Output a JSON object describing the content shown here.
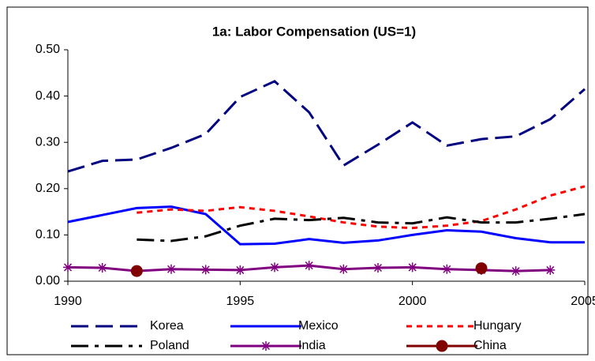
{
  "chart_data": {
    "type": "line",
    "title": "1a: Labor Compensation (US=1)",
    "x": [
      1990,
      1991,
      1992,
      1993,
      1994,
      1995,
      1996,
      1997,
      1998,
      1999,
      2000,
      2001,
      2002,
      2003,
      2004,
      2005
    ],
    "xlim": [
      1990,
      2005
    ],
    "xticks": [
      1990,
      1995,
      2000,
      2005
    ],
    "ylim": [
      0,
      0.5
    ],
    "yticks": [
      {
        "value": 0,
        "label": "0.00"
      },
      {
        "value": 0.1,
        "label": "0.10"
      },
      {
        "value": 0.2,
        "label": "0.20"
      },
      {
        "value": 0.3,
        "label": "0.30"
      },
      {
        "value": 0.4,
        "label": "0.40"
      },
      {
        "value": 0.5,
        "label": "0.50"
      }
    ],
    "grid": false,
    "legend": "bottom",
    "series": [
      {
        "name": "Korea",
        "color": "#000080",
        "dash": "long",
        "marker": "none",
        "values": [
          0.237,
          0.26,
          0.263,
          0.288,
          0.318,
          0.398,
          0.432,
          0.365,
          0.25,
          0.295,
          0.343,
          0.293,
          0.307,
          0.313,
          0.35,
          0.415
        ]
      },
      {
        "name": "Mexico",
        "color": "#0000ff",
        "dash": "solid",
        "marker": "none",
        "values": [
          0.128,
          0.143,
          0.158,
          0.161,
          0.145,
          0.08,
          0.081,
          0.091,
          0.083,
          0.088,
          0.1,
          0.11,
          0.107,
          0.093,
          0.084,
          0.084
        ]
      },
      {
        "name": "Hungary",
        "color": "#ff0000",
        "dash": "short",
        "marker": "none",
        "values": [
          null,
          null,
          0.148,
          0.155,
          0.152,
          0.16,
          0.152,
          0.14,
          0.127,
          0.118,
          0.115,
          0.12,
          0.13,
          0.155,
          0.185,
          0.205
        ]
      },
      {
        "name": "Poland",
        "color": "#000000",
        "dash": "dashdot",
        "marker": "none",
        "values": [
          null,
          null,
          0.09,
          0.087,
          0.097,
          0.12,
          0.135,
          0.132,
          0.137,
          0.127,
          0.125,
          0.138,
          0.127,
          0.127,
          0.135,
          0.145
        ]
      },
      {
        "name": "India",
        "color": "#800080",
        "dash": "solid",
        "marker": "star",
        "values": [
          0.03,
          0.029,
          0.022,
          0.026,
          0.025,
          0.024,
          0.03,
          0.034,
          0.026,
          0.029,
          0.03,
          0.026,
          0.024,
          0.022,
          0.024,
          null
        ]
      },
      {
        "name": "China",
        "color": "#800000",
        "dash": "solid",
        "marker": "circle",
        "values": [
          null,
          null,
          0.022,
          null,
          null,
          null,
          null,
          null,
          null,
          null,
          null,
          null,
          0.028,
          null,
          null,
          null
        ]
      }
    ]
  }
}
